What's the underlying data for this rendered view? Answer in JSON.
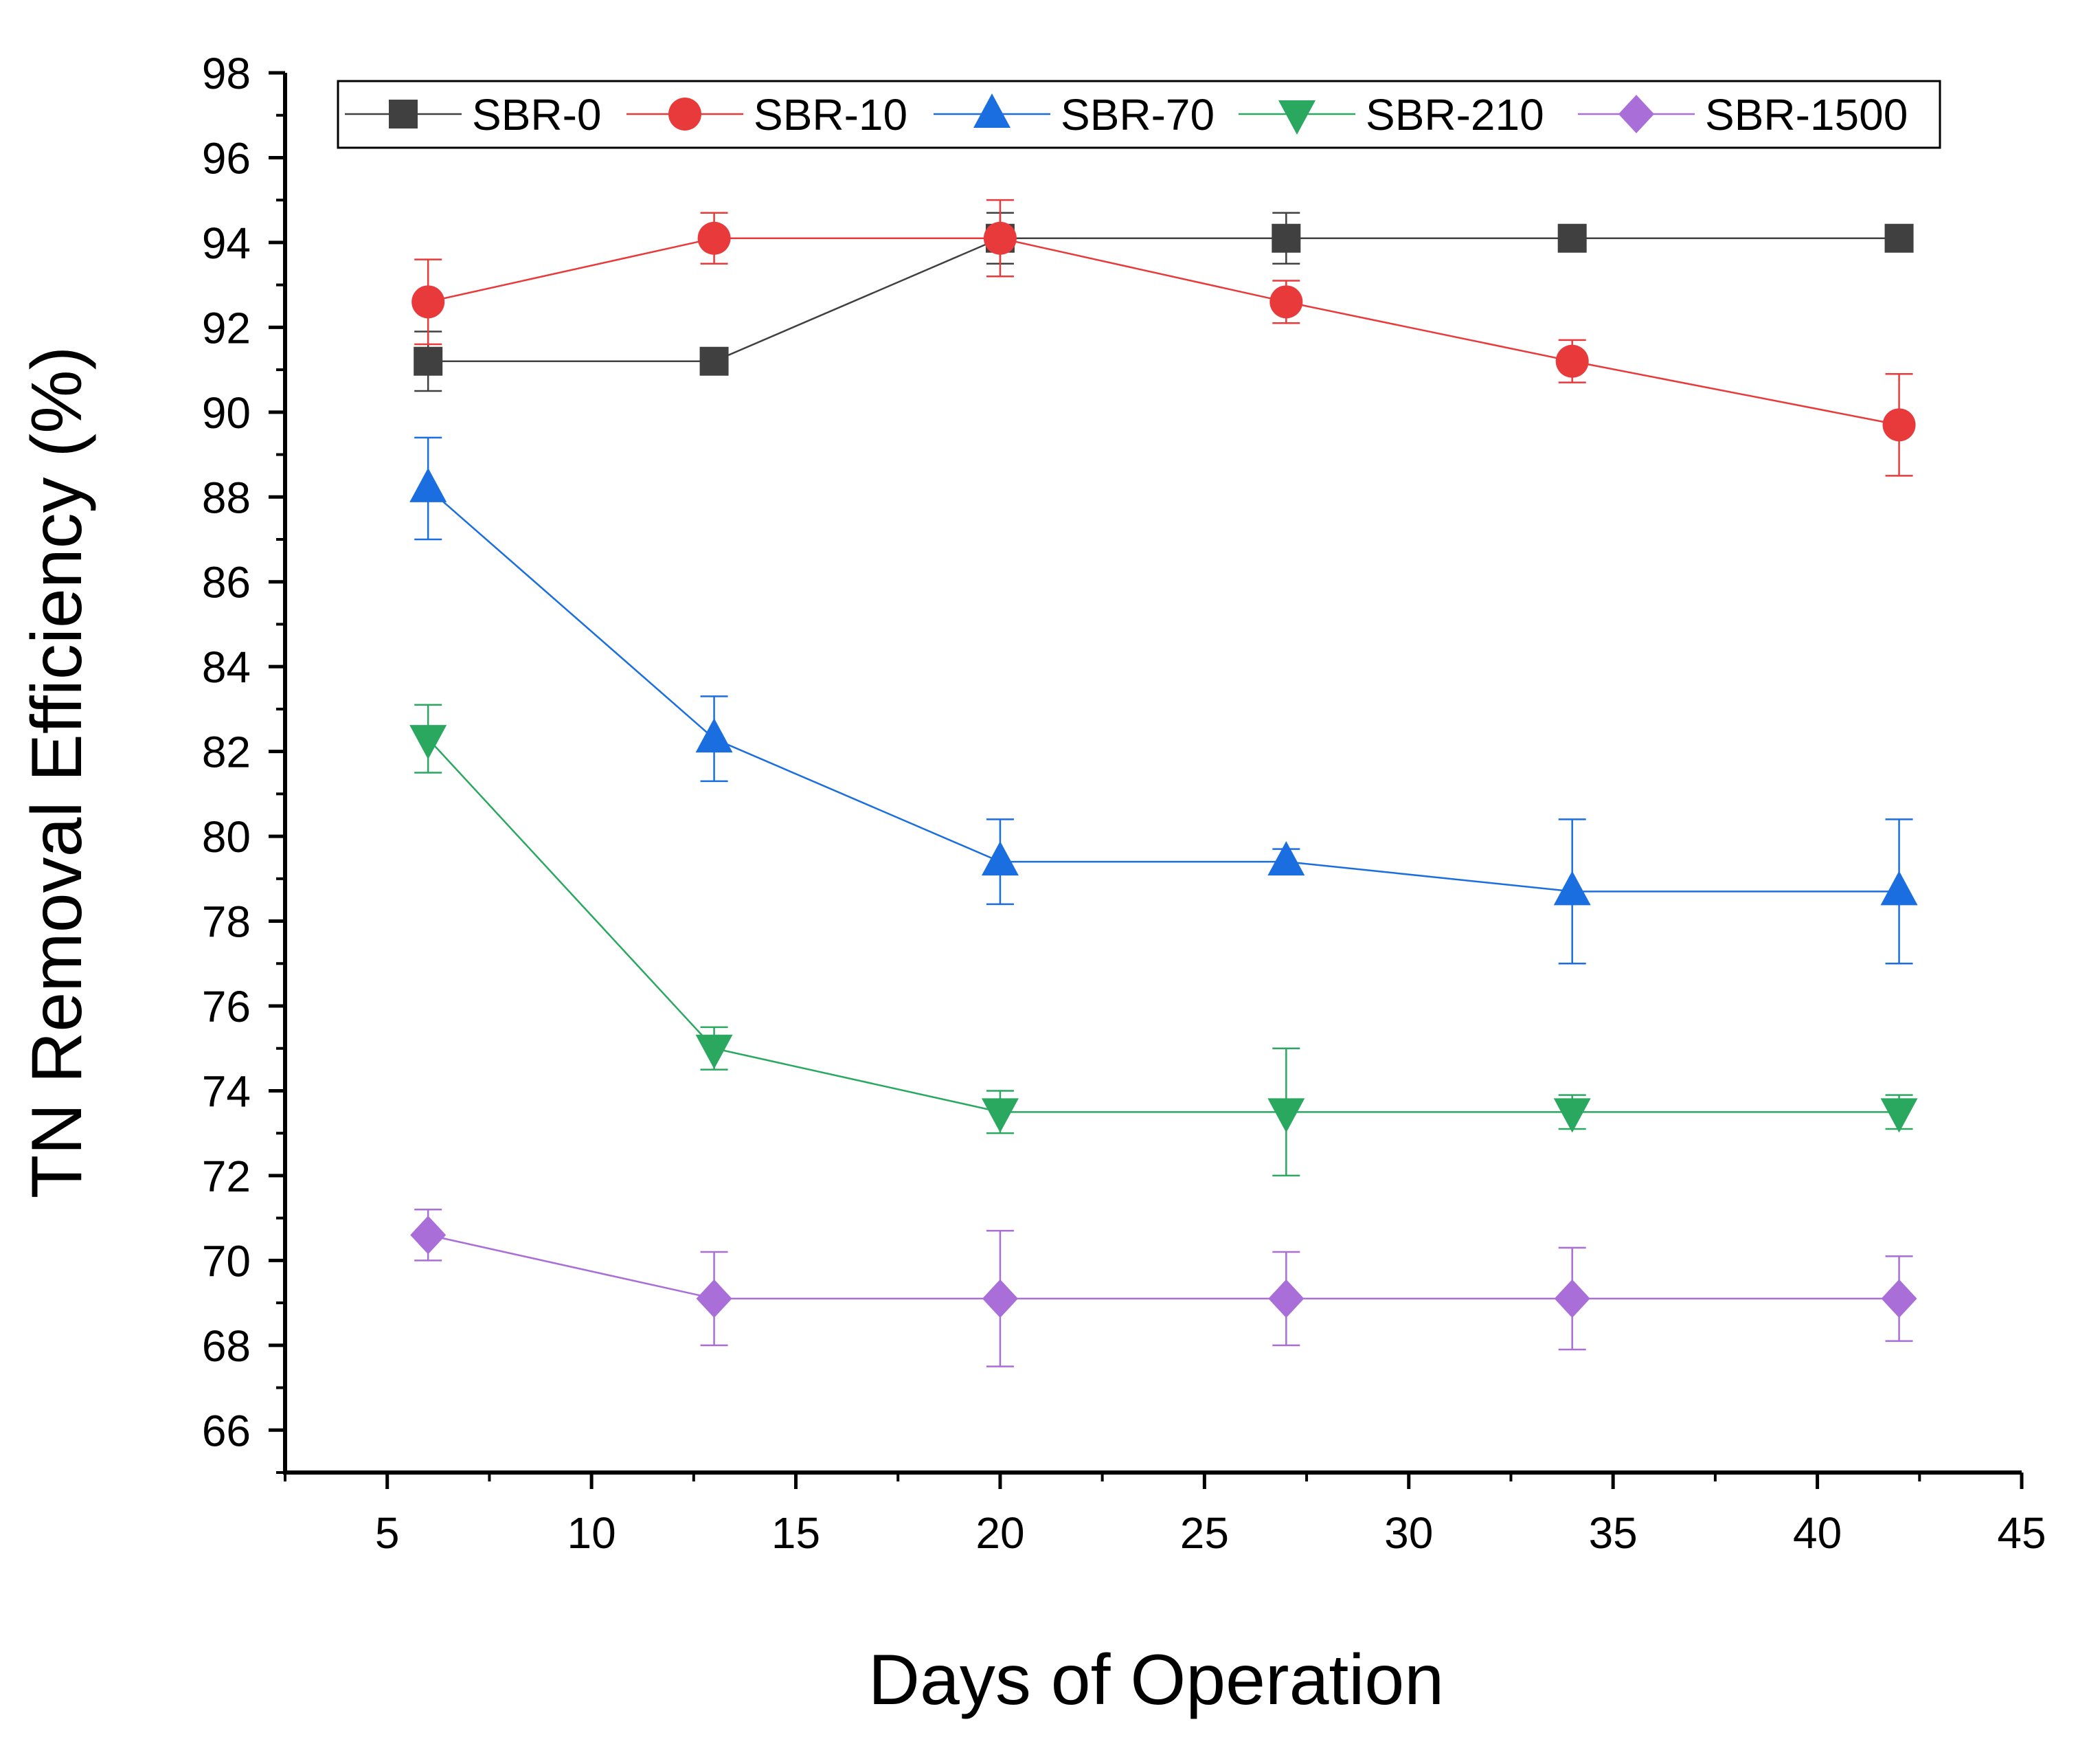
{
  "chart_data": {
    "type": "line",
    "title": "",
    "xlabel": "Days of Operation",
    "ylabel": "TN Removal Efficiency (%)",
    "xlim": [
      2.5,
      45
    ],
    "ylim": [
      65,
      98
    ],
    "xticks": [
      5,
      10,
      15,
      20,
      25,
      30,
      35,
      40,
      45
    ],
    "yticks": [
      66,
      68,
      70,
      72,
      74,
      76,
      78,
      80,
      82,
      84,
      86,
      88,
      90,
      92,
      94,
      96,
      98
    ],
    "grid": false,
    "legend_position": "top",
    "x": [
      6,
      13,
      20,
      27,
      34,
      42
    ],
    "series": [
      {
        "name": "SBR-0",
        "color": "#404040",
        "marker": "square",
        "values": [
          91.2,
          91.2,
          94.1,
          94.1,
          94.1,
          94.1
        ],
        "errors": [
          0.7,
          0,
          0.6,
          0.6,
          0,
          0
        ]
      },
      {
        "name": "SBR-10",
        "color": "#e83a3a",
        "marker": "circle",
        "values": [
          92.6,
          94.1,
          94.1,
          92.6,
          91.2,
          89.7
        ],
        "errors": [
          1.0,
          0.6,
          0.9,
          0.5,
          0.5,
          1.2
        ]
      },
      {
        "name": "SBR-70",
        "color": "#1b6ee0",
        "marker": "triangle-up",
        "values": [
          88.2,
          82.3,
          79.4,
          79.4,
          78.7,
          78.7
        ],
        "errors": [
          1.2,
          1.0,
          1.0,
          0.3,
          1.7,
          1.7
        ]
      },
      {
        "name": "SBR-210",
        "color": "#2aa860",
        "marker": "triangle-down",
        "values": [
          82.3,
          75.0,
          73.5,
          73.5,
          73.5,
          73.5
        ],
        "errors": [
          0.8,
          0.5,
          0.5,
          1.5,
          0.4,
          0.4
        ]
      },
      {
        "name": "SBR-1500",
        "color": "#a96ed8",
        "marker": "diamond",
        "values": [
          70.6,
          69.1,
          69.1,
          69.1,
          69.1,
          69.1
        ],
        "errors": [
          0.6,
          1.1,
          1.6,
          1.1,
          1.2,
          1.0
        ]
      }
    ]
  }
}
